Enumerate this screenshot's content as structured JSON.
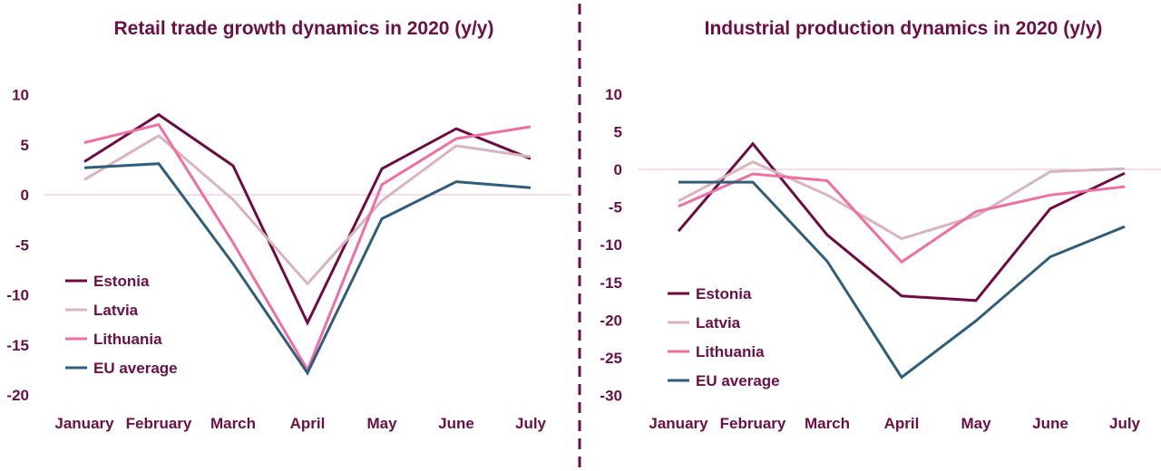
{
  "colors": {
    "text": "#6b0f45",
    "zero_line": "#f3b8d8",
    "divider": "#6b0f45",
    "Estonia": "#6e0b45",
    "Latvia": "#d9b4bd",
    "Lithuania": "#f06fa2",
    "EU average": "#2f5d7c"
  },
  "chart_data": [
    {
      "type": "line",
      "title": "Retail trade growth dynamics in 2020 (y/y)",
      "categories": [
        "January",
        "February",
        "March",
        "April",
        "May",
        "June",
        "July"
      ],
      "ylim": [
        -20,
        10
      ],
      "yticks": [
        10,
        5,
        0,
        -5,
        -10,
        -15,
        -20
      ],
      "ytick_labels": [
        "10",
        "5",
        "0",
        "-5",
        "-10",
        "-15",
        "-20"
      ],
      "legend_position": "bottom-left",
      "series": [
        {
          "name": "Estonia",
          "values": [
            3.3,
            8.0,
            2.9,
            -12.8,
            2.6,
            6.6,
            3.6
          ]
        },
        {
          "name": "Latvia",
          "values": [
            1.5,
            5.9,
            -0.5,
            -8.9,
            -0.6,
            4.9,
            3.8
          ]
        },
        {
          "name": "Lithuania",
          "values": [
            5.2,
            7.0,
            -4.8,
            -17.5,
            1.0,
            5.6,
            6.8
          ]
        },
        {
          "name": "EU average",
          "values": [
            2.7,
            3.1,
            -6.9,
            -17.8,
            -2.4,
            1.3,
            0.7
          ]
        }
      ]
    },
    {
      "type": "line",
      "title": "Industrial production dynamics in 2020 (y/y)",
      "categories": [
        "January",
        "February",
        "March",
        "April",
        "May",
        "June",
        "July"
      ],
      "ylim": [
        -30,
        10
      ],
      "yticks": [
        10,
        5,
        0,
        -5,
        -10,
        -15,
        -20,
        -25,
        -30
      ],
      "ytick_labels": [
        "10",
        "5",
        "0",
        "-5",
        "-10",
        "-15",
        "-20",
        "-25",
        "-30"
      ],
      "legend_position": "bottom-left",
      "series": [
        {
          "name": "Estonia",
          "values": [
            -8.2,
            3.4,
            -8.7,
            -16.8,
            -17.4,
            -5.2,
            -0.5
          ]
        },
        {
          "name": "Latvia",
          "values": [
            -4.2,
            1.0,
            -3.4,
            -9.2,
            -6.2,
            -0.3,
            0.1
          ]
        },
        {
          "name": "Lithuania",
          "values": [
            -4.9,
            -0.6,
            -1.5,
            -12.3,
            -5.6,
            -3.4,
            -2.3
          ]
        },
        {
          "name": "EU average",
          "values": [
            -1.7,
            -1.7,
            -12.2,
            -27.6,
            -20.1,
            -11.6,
            -7.6
          ]
        }
      ]
    }
  ]
}
